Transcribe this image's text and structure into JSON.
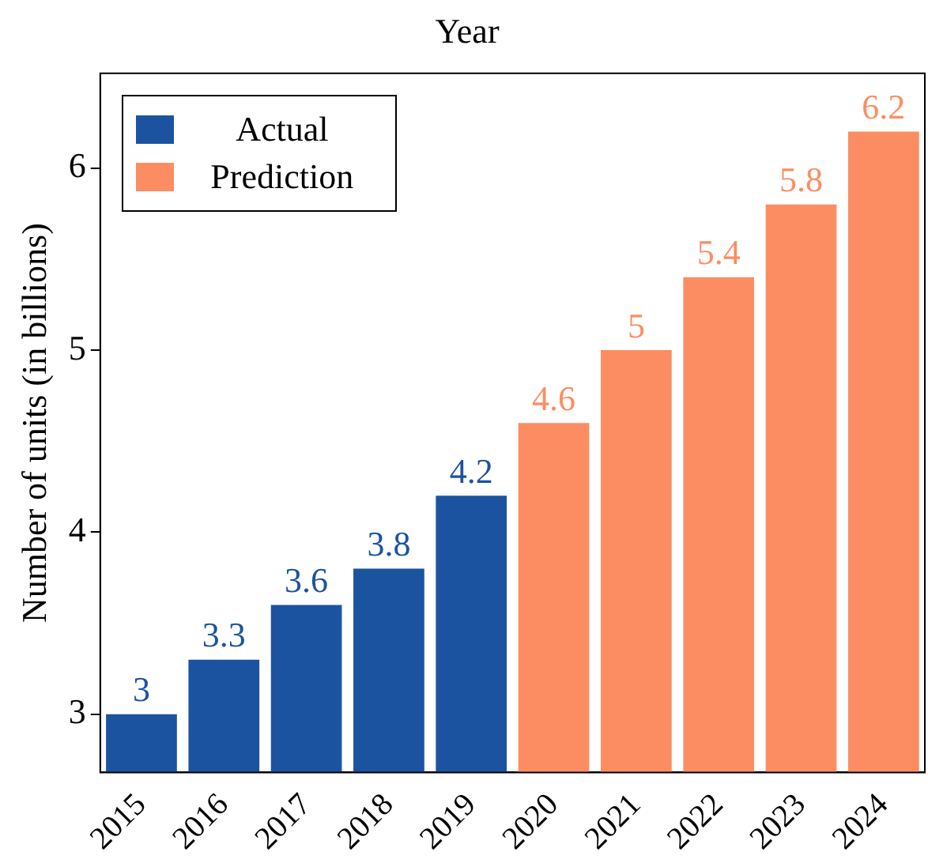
{
  "chart_data": {
    "type": "bar",
    "xlabel": "Year",
    "ylabel": "Number of units (in billions)",
    "categories": [
      "2015",
      "2016",
      "2017",
      "2018",
      "2019",
      "2020",
      "2021",
      "2022",
      "2023",
      "2024"
    ],
    "series": [
      {
        "name": "Actual",
        "color": "#1c53a0",
        "values": [
          3,
          3.3,
          3.6,
          3.8,
          4.2,
          null,
          null,
          null,
          null,
          null
        ]
      },
      {
        "name": "Prediction",
        "color": "#fc8d62",
        "values": [
          null,
          null,
          null,
          null,
          null,
          4.6,
          5,
          5.4,
          5.8,
          6.2
        ]
      }
    ],
    "ylim": [
      2.68,
      6.52
    ],
    "yticks": [
      3,
      4,
      5,
      6
    ],
    "grid": false,
    "legend": "top left",
    "data_labels": true
  }
}
